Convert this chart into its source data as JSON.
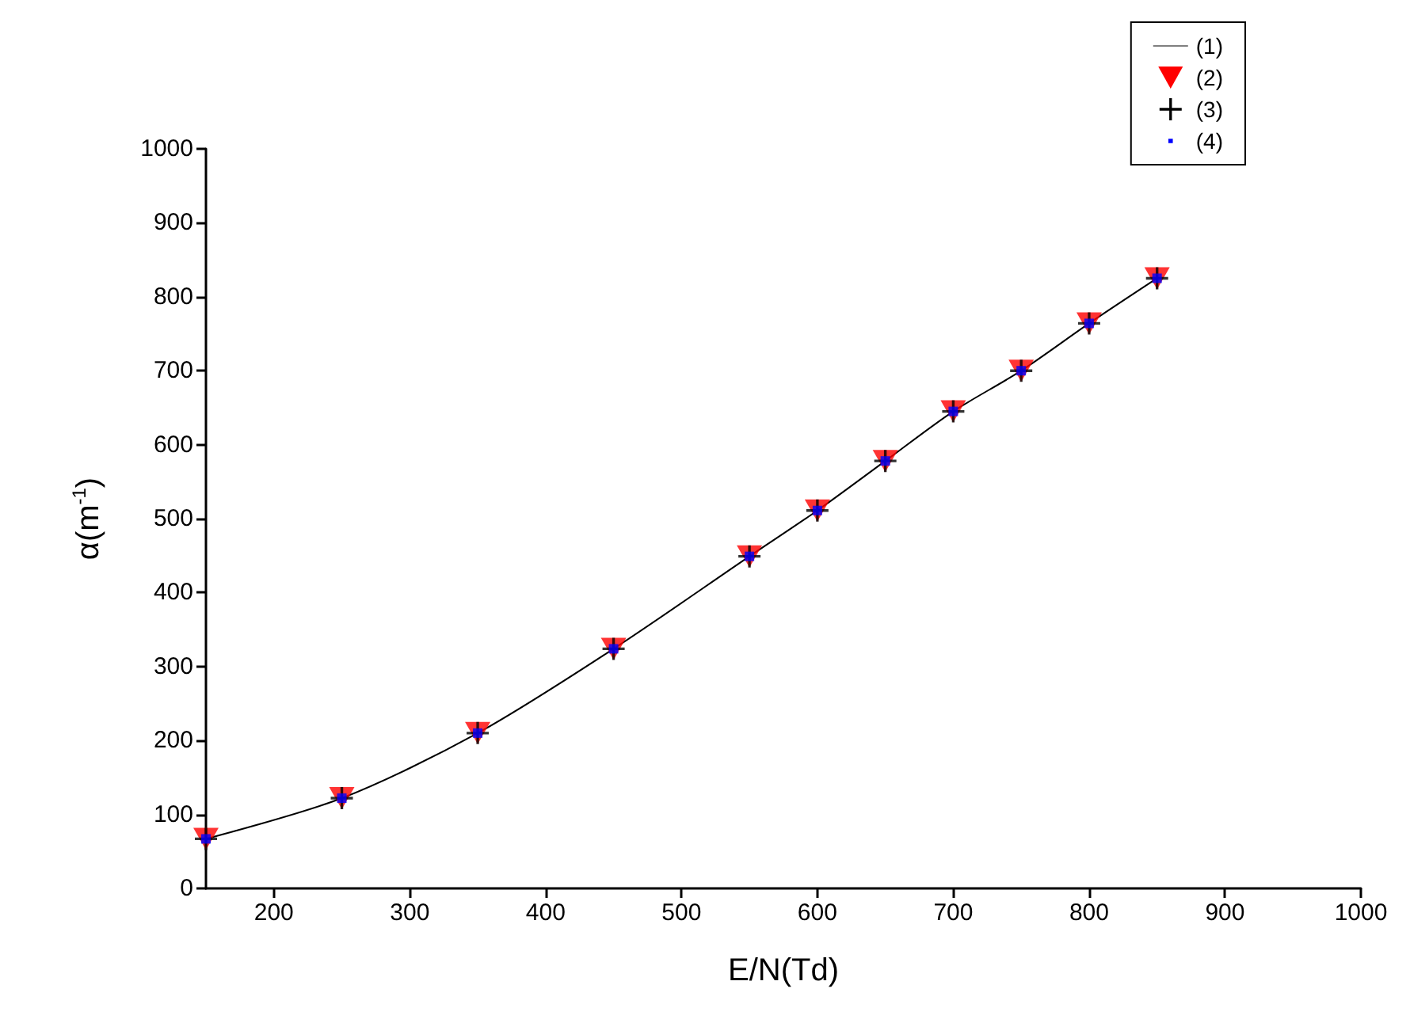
{
  "chart_data": {
    "type": "line",
    "xlabel": "E/N(Td)",
    "ylabel": "α(m$^{-1}$)",
    "x": [
      150,
      250,
      350,
      450,
      550,
      600,
      650,
      700,
      750,
      800,
      850
    ],
    "series": [
      {
        "name": "(1)",
        "color": "#000000",
        "marker": "none",
        "values": [
          67,
          122,
          210,
          324,
          449,
          511,
          578,
          645,
          700,
          764,
          825
        ]
      },
      {
        "name": "(2)",
        "type": "scatter",
        "color": "#ff0000",
        "marker": "triangle",
        "values": [
          67,
          122,
          210,
          324,
          449,
          511,
          578,
          645,
          700,
          764,
          825
        ]
      },
      {
        "name": "(3)",
        "type": "scatter",
        "color": "#000000",
        "marker": "cross",
        "values": [
          67,
          122,
          210,
          324,
          449,
          511,
          578,
          645,
          700,
          764,
          825
        ]
      },
      {
        "name": "(4)",
        "type": "scatter",
        "color": "#0000ff",
        "marker": "square",
        "values": [
          67,
          122,
          210,
          324,
          449,
          511,
          578,
          645,
          700,
          764,
          825
        ]
      }
    ],
    "xlim": [
      150,
      1000
    ],
    "xticks": [
      200,
      300,
      400,
      500,
      600,
      700,
      800,
      900,
      1000
    ],
    "ylim": [
      0,
      1000
    ],
    "yticks": [
      0,
      100,
      200,
      300,
      400,
      500,
      600,
      700,
      800,
      900,
      1000
    ],
    "grid": false,
    "legend": "top right"
  }
}
